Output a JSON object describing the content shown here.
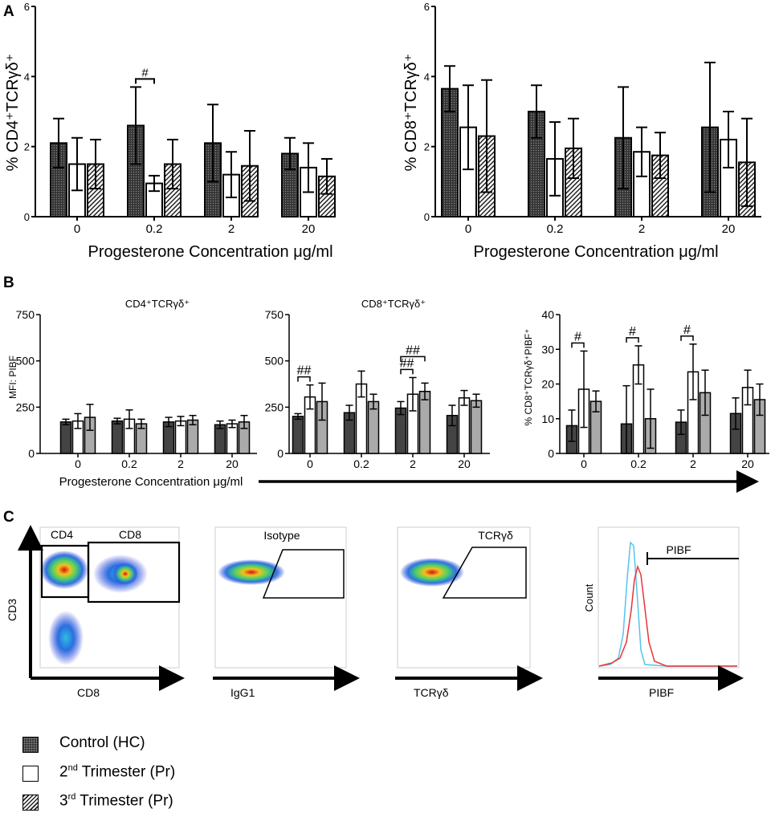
{
  "panel_labels": {
    "a": "A",
    "b": "B",
    "c": "C"
  },
  "panel_a": {
    "xlabel_prefix": "Progesterone Concentration ",
    "xlabel_unit": "μg/ml"
  },
  "panel_b": {
    "xlabel_prefix": "Progesterone Concentration ",
    "xlabel_unit": "μg/ml",
    "ylabel_left": "MFI: PIBF"
  },
  "panel_c": {
    "plots": [
      {
        "ylabel": "CD3",
        "xlabel": "CD8",
        "gates": [
          "CD4",
          "CD8"
        ]
      },
      {
        "ylabel": "",
        "xlabel": "IgG1",
        "gates": [
          "Isotype"
        ]
      },
      {
        "ylabel": "",
        "xlabel": "TCRγδ",
        "gates": [
          "TCRγδ"
        ]
      },
      {
        "ylabel": "Count",
        "xlabel": "PIBF",
        "gates": [
          "PIBF"
        ]
      }
    ]
  },
  "colors": {
    "control": "#333333",
    "second_trimester": "#ffffff",
    "third_trimester_hatch": "#222222",
    "panel_b_third": "#aaaaaa",
    "histogram_control": "#e8333a",
    "histogram_isotype": "#55c4ec"
  },
  "legend": [
    {
      "label": "Control (HC)",
      "pattern": "dark"
    },
    {
      "label_main": "2",
      "label_sup": "nd",
      "label_rest": " Trimester (Pr)",
      "pattern": "white"
    },
    {
      "label_main": "3",
      "label_sup": "rd",
      "label_rest": " Trimester (Pr)",
      "pattern": "hatch"
    }
  ],
  "chart_data": [
    {
      "id": "A1",
      "type": "bar",
      "title": "",
      "xlabel": "Progesterone Concentration μg/ml",
      "ylabel": "% CD4⁺TCRγδ⁺",
      "ylim": [
        0,
        6
      ],
      "yticks": [
        "0",
        "2",
        "4",
        "6"
      ],
      "categories": [
        "0",
        "0.2",
        "2",
        "20"
      ],
      "series": [
        {
          "name": "Control (HC)",
          "values": [
            2.1,
            2.6,
            2.1,
            1.8
          ],
          "errors": [
            0.7,
            1.1,
            1.1,
            0.45
          ]
        },
        {
          "name": "2nd Trimester (Pr)",
          "values": [
            1.5,
            0.95,
            1.2,
            1.4
          ],
          "errors": [
            0.75,
            0.22,
            0.65,
            0.7
          ]
        },
        {
          "name": "3rd Trimester (Pr)",
          "values": [
            1.5,
            1.5,
            1.45,
            1.15
          ],
          "errors": [
            0.7,
            0.7,
            1.0,
            0.5
          ]
        }
      ],
      "significance": [
        {
          "category": "0.2",
          "pair": [
            0,
            1
          ],
          "label": "#"
        }
      ]
    },
    {
      "id": "A2",
      "type": "bar",
      "title": "",
      "xlabel": "Progesterone Concentration μg/ml",
      "ylabel": "% CD8⁺TCRγδ⁺",
      "ylim": [
        0,
        6
      ],
      "yticks": [
        "0",
        "2",
        "4",
        "6"
      ],
      "categories": [
        "0",
        "0.2",
        "2",
        "20"
      ],
      "series": [
        {
          "name": "Control (HC)",
          "values": [
            3.65,
            3.0,
            2.25,
            2.55
          ],
          "errors": [
            0.65,
            0.75,
            1.45,
            1.85
          ]
        },
        {
          "name": "2nd Trimester (Pr)",
          "values": [
            2.55,
            1.65,
            1.85,
            2.2
          ],
          "errors": [
            1.2,
            1.05,
            0.7,
            0.8
          ]
        },
        {
          "name": "3rd Trimester (Pr)",
          "values": [
            2.3,
            1.95,
            1.75,
            1.55
          ],
          "errors": [
            1.6,
            0.85,
            0.65,
            1.25
          ]
        }
      ],
      "significance": []
    },
    {
      "id": "B1",
      "type": "bar",
      "title": "CD4⁺TCRγδ⁺",
      "xlabel": "Progesterone Concentration μg/ml",
      "ylabel": "MFI: PIBF",
      "ylim": [
        0,
        750
      ],
      "yticks": [
        "0",
        "250",
        "500",
        "750"
      ],
      "categories": [
        "0",
        "0.2",
        "2",
        "20"
      ],
      "series": [
        {
          "name": "Control (HC)",
          "values": [
            170,
            175,
            170,
            155
          ],
          "errors": [
            15,
            15,
            25,
            20
          ]
        },
        {
          "name": "2nd Trimester (Pr)",
          "values": [
            175,
            185,
            175,
            160
          ],
          "errors": [
            40,
            50,
            25,
            20
          ]
        },
        {
          "name": "3rd Trimester (Pr)",
          "values": [
            195,
            160,
            180,
            170
          ],
          "errors": [
            70,
            25,
            25,
            35
          ]
        }
      ],
      "significance": []
    },
    {
      "id": "B2",
      "type": "bar",
      "title": "CD8⁺TCRγδ⁺",
      "xlabel": "",
      "ylabel": "",
      "ylim": [
        0,
        750
      ],
      "yticks": [
        "0",
        "250",
        "500",
        "750"
      ],
      "categories": [
        "0",
        "0.2",
        "2",
        "20"
      ],
      "series": [
        {
          "name": "Control (HC)",
          "values": [
            200,
            220,
            245,
            205
          ],
          "errors": [
            15,
            40,
            35,
            55
          ]
        },
        {
          "name": "2nd Trimester (Pr)",
          "values": [
            305,
            375,
            320,
            300
          ],
          "errors": [
            65,
            70,
            90,
            40
          ]
        },
        {
          "name": "3rd Trimester (Pr)",
          "values": [
            280,
            280,
            335,
            285
          ],
          "errors": [
            100,
            40,
            45,
            35
          ]
        }
      ],
      "significance": [
        {
          "category": "0",
          "pair": [
            0,
            1
          ],
          "label": "##"
        },
        {
          "category": "2",
          "pair": [
            0,
            1
          ],
          "label": "##"
        },
        {
          "category": "2",
          "pair": [
            0,
            2
          ],
          "label": "##"
        }
      ]
    },
    {
      "id": "B3",
      "type": "bar",
      "title": "",
      "xlabel": "",
      "ylabel": "% CD8⁺TCRγδ⁺PIBF⁺",
      "ylim": [
        0,
        40
      ],
      "yticks": [
        "0",
        "10",
        "20",
        "30",
        "40"
      ],
      "categories": [
        "0",
        "0.2",
        "2",
        "20"
      ],
      "series": [
        {
          "name": "Control (HC)",
          "values": [
            8,
            8.5,
            9,
            11.5
          ],
          "errors": [
            4.5,
            11,
            3.5,
            4.5
          ]
        },
        {
          "name": "2nd Trimester (Pr)",
          "values": [
            18.5,
            25.5,
            23.5,
            19
          ],
          "errors": [
            11,
            5.5,
            8,
            5
          ]
        },
        {
          "name": "3rd Trimester (Pr)",
          "values": [
            15,
            10,
            17.5,
            15.5
          ],
          "errors": [
            3,
            8.5,
            6.5,
            4.5
          ]
        }
      ],
      "significance": [
        {
          "category": "0",
          "pair": [
            0,
            1
          ],
          "label": "#"
        },
        {
          "category": "0.2",
          "pair": [
            0,
            1
          ],
          "label": "#"
        },
        {
          "category": "2",
          "pair": [
            0,
            1
          ],
          "label": "#"
        }
      ]
    }
  ]
}
